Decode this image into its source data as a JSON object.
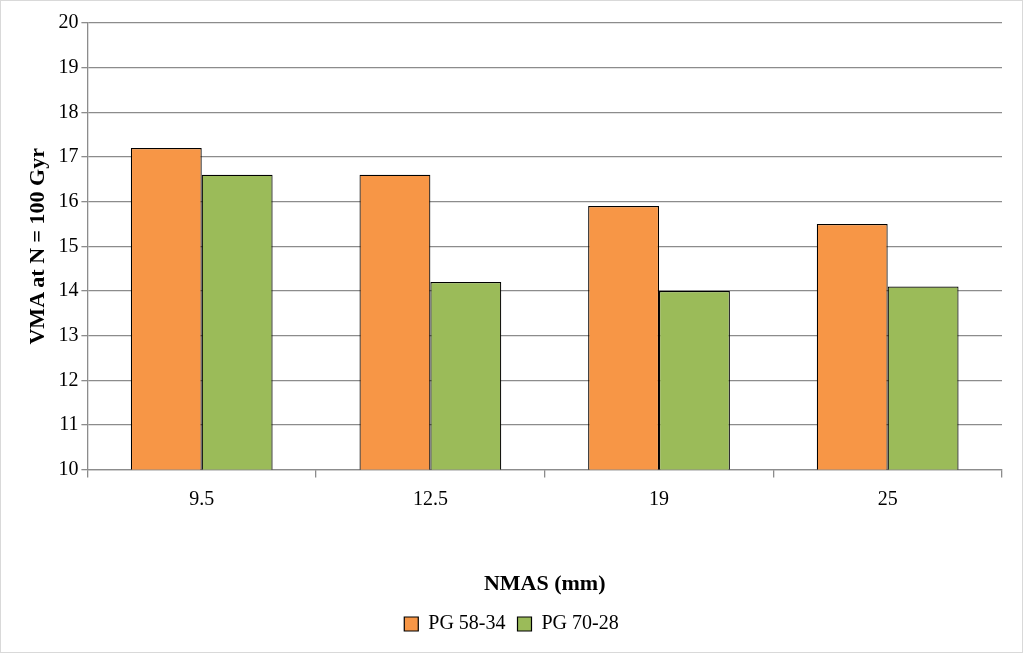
{
  "chart_data": {
    "type": "bar",
    "xlabel": "NMAS (mm)",
    "ylabel": "VMA at N = 100 Gyr",
    "categories": [
      "9.5",
      "12.5",
      "19",
      "25"
    ],
    "series": [
      {
        "name": "PG 58-34",
        "color": "#f79646",
        "values": [
          17.2,
          16.6,
          15.9,
          15.5
        ]
      },
      {
        "name": "PG 70-28",
        "color": "#9bbb59",
        "values": [
          16.6,
          14.2,
          14.0,
          14.1
        ]
      }
    ],
    "ylim": [
      10,
      20
    ],
    "yticks": [
      10,
      11,
      12,
      13,
      14,
      15,
      16,
      17,
      18,
      19,
      20
    ],
    "grid": "y",
    "legend": "bottom"
  }
}
